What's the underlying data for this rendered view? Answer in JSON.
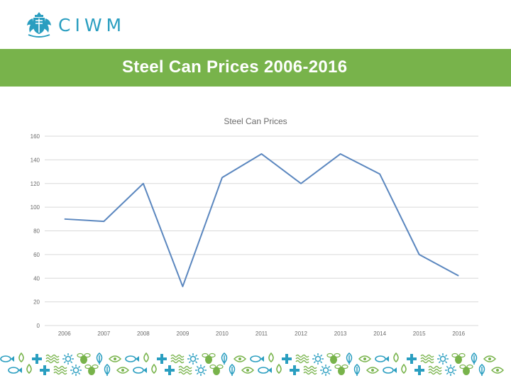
{
  "header": {
    "logo_text": "CIWM",
    "title": "Steel Can Prices 2006-2016"
  },
  "colors": {
    "brand_teal": "#2a9ec0",
    "banner_green": "#78b34b",
    "line_blue": "#5b87bf",
    "grid": "#d9d9d9"
  },
  "chart_data": {
    "type": "line",
    "title": "Steel Can Prices",
    "categories": [
      "2006",
      "2007",
      "2008",
      "2009",
      "2010",
      "2011",
      "2012",
      "2013",
      "2014",
      "2015",
      "2016"
    ],
    "series": [
      {
        "values": [
          90,
          88,
          120,
          33,
          125,
          145,
          120,
          145,
          128,
          60,
          42
        ]
      }
    ],
    "yticks": [
      "0",
      "20",
      "40",
      "60",
      "80",
      "100",
      "120",
      "140",
      "160"
    ],
    "ylim": [
      0,
      160
    ],
    "grid": true,
    "legend": "none"
  },
  "footer": {
    "pattern_icons": [
      "fish-icon",
      "droplet-icon",
      "cross-icon",
      "wave-icon",
      "sun-icon",
      "bee-icon",
      "leaf-icon",
      "eye-icon"
    ]
  }
}
